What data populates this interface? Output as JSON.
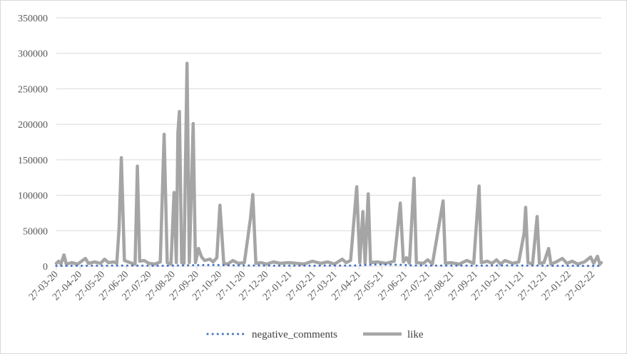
{
  "chart_data": {
    "type": "line",
    "title": "",
    "xlabel": "",
    "ylabel": "",
    "ylim": [
      0,
      350000
    ],
    "yticks": [
      0,
      50000,
      100000,
      150000,
      200000,
      250000,
      300000,
      350000
    ],
    "ytick_labels": [
      "0",
      "50000",
      "100000",
      "150000",
      "200000",
      "250000",
      "300000",
      "350000"
    ],
    "x_start": "2020-03-27",
    "x_end": "2022-03-10",
    "xtick_labels": [
      "27-03-20",
      "27-04-20",
      "27-05-20",
      "27-06-20",
      "27-07-20",
      "27-08-20",
      "27-09-20",
      "27-10-20",
      "27-11-20",
      "27-12-20",
      "27-01-21",
      "27-02-21",
      "27-03-21",
      "27-04-21",
      "27-05-21",
      "27-06-21",
      "27-07-21",
      "27-08-21",
      "27-09-21",
      "27-10-21",
      "27-11-21",
      "27-12-21",
      "27-01-22",
      "27-02-22"
    ],
    "xtick_dates": [
      "2020-03-27",
      "2020-04-27",
      "2020-05-27",
      "2020-06-27",
      "2020-07-27",
      "2020-08-27",
      "2020-09-27",
      "2020-10-27",
      "2020-11-27",
      "2020-12-27",
      "2021-01-27",
      "2021-02-27",
      "2021-03-27",
      "2021-04-27",
      "2021-05-27",
      "2021-06-27",
      "2021-07-27",
      "2021-08-27",
      "2021-09-27",
      "2021-10-27",
      "2021-11-27",
      "2021-12-27",
      "2022-01-27",
      "2022-02-27"
    ],
    "grid": true,
    "legend_position": "bottom",
    "series": [
      {
        "name": "negative_comments",
        "style": "dotted",
        "color": "#4472c4",
        "points": [
          [
            "2020-03-27",
            500
          ],
          [
            "2020-06-20",
            900
          ],
          [
            "2020-08-15",
            600
          ],
          [
            "2020-09-20",
            1400
          ],
          [
            "2020-10-20",
            1800
          ],
          [
            "2020-11-15",
            1200
          ],
          [
            "2021-01-20",
            700
          ],
          [
            "2021-04-20",
            900
          ],
          [
            "2021-05-20",
            2500
          ],
          [
            "2021-06-25",
            2000
          ],
          [
            "2021-07-05",
            1000
          ],
          [
            "2021-09-20",
            800
          ],
          [
            "2021-11-10",
            1100
          ],
          [
            "2022-01-15",
            600
          ],
          [
            "2022-03-10",
            500
          ]
        ]
      },
      {
        "name": "like",
        "style": "solid",
        "color": "#a5a5a5",
        "points": [
          [
            "2020-03-27",
            4000
          ],
          [
            "2020-03-30",
            7000
          ],
          [
            "2020-04-02",
            3000
          ],
          [
            "2020-04-06",
            16000
          ],
          [
            "2020-04-09",
            3000
          ],
          [
            "2020-04-16",
            5000
          ],
          [
            "2020-04-24",
            3000
          ],
          [
            "2020-05-04",
            11000
          ],
          [
            "2020-05-08",
            4000
          ],
          [
            "2020-05-16",
            6000
          ],
          [
            "2020-05-24",
            4000
          ],
          [
            "2020-05-29",
            10000
          ],
          [
            "2020-06-03",
            5000
          ],
          [
            "2020-06-10",
            6000
          ],
          [
            "2020-06-14",
            4000
          ],
          [
            "2020-06-17",
            53000
          ],
          [
            "2020-06-20",
            153000
          ],
          [
            "2020-06-24",
            8000
          ],
          [
            "2020-06-29",
            6000
          ],
          [
            "2020-07-04",
            4000
          ],
          [
            "2020-07-08",
            3000
          ],
          [
            "2020-07-11",
            141000
          ],
          [
            "2020-07-14",
            7000
          ],
          [
            "2020-07-20",
            8000
          ],
          [
            "2020-07-26",
            4000
          ],
          [
            "2020-08-03",
            3000
          ],
          [
            "2020-08-10",
            6000
          ],
          [
            "2020-08-15",
            186000
          ],
          [
            "2020-08-19",
            5000
          ],
          [
            "2020-08-24",
            3000
          ],
          [
            "2020-08-28",
            104000
          ],
          [
            "2020-08-31",
            5000
          ],
          [
            "2020-09-02",
            188000
          ],
          [
            "2020-09-04",
            218000
          ],
          [
            "2020-09-07",
            5000
          ],
          [
            "2020-09-10",
            4000
          ],
          [
            "2020-09-14",
            286000
          ],
          [
            "2020-09-17",
            5000
          ],
          [
            "2020-09-19",
            82000
          ],
          [
            "2020-09-22",
            201000
          ],
          [
            "2020-09-25",
            5000
          ],
          [
            "2020-09-29",
            25000
          ],
          [
            "2020-10-03",
            13000
          ],
          [
            "2020-10-07",
            8000
          ],
          [
            "2020-10-14",
            10000
          ],
          [
            "2020-10-18",
            6000
          ],
          [
            "2020-10-23",
            12000
          ],
          [
            "2020-10-27",
            86000
          ],
          [
            "2020-11-01",
            4000
          ],
          [
            "2020-11-06",
            3000
          ],
          [
            "2020-11-13",
            8000
          ],
          [
            "2020-11-20",
            4000
          ],
          [
            "2020-11-28",
            5000
          ],
          [
            "2020-12-06",
            68000
          ],
          [
            "2020-12-09",
            101000
          ],
          [
            "2020-12-13",
            4000
          ],
          [
            "2020-12-20",
            5000
          ],
          [
            "2020-12-27",
            3000
          ],
          [
            "2021-01-05",
            6000
          ],
          [
            "2021-01-14",
            4000
          ],
          [
            "2021-01-25",
            5000
          ],
          [
            "2021-02-05",
            4000
          ],
          [
            "2021-02-14",
            3000
          ],
          [
            "2021-02-25",
            7000
          ],
          [
            "2021-03-08",
            4000
          ],
          [
            "2021-03-17",
            6000
          ],
          [
            "2021-03-26",
            3000
          ],
          [
            "2021-04-05",
            10000
          ],
          [
            "2021-04-10",
            5000
          ],
          [
            "2021-04-16",
            8000
          ],
          [
            "2021-04-24",
            112000
          ],
          [
            "2021-04-28",
            5000
          ],
          [
            "2021-05-02",
            77000
          ],
          [
            "2021-05-05",
            4000
          ],
          [
            "2021-05-09",
            102000
          ],
          [
            "2021-05-12",
            5000
          ],
          [
            "2021-05-21",
            6000
          ],
          [
            "2021-06-01",
            4000
          ],
          [
            "2021-06-12",
            7000
          ],
          [
            "2021-06-20",
            89000
          ],
          [
            "2021-06-24",
            6000
          ],
          [
            "2021-06-28",
            12000
          ],
          [
            "2021-07-02",
            4000
          ],
          [
            "2021-07-08",
            124000
          ],
          [
            "2021-07-11",
            5000
          ],
          [
            "2021-07-20",
            4000
          ],
          [
            "2021-07-26",
            9000
          ],
          [
            "2021-08-01",
            3000
          ],
          [
            "2021-08-15",
            92000
          ],
          [
            "2021-08-18",
            4000
          ],
          [
            "2021-08-25",
            5000
          ],
          [
            "2021-09-05",
            3000
          ],
          [
            "2021-09-15",
            8000
          ],
          [
            "2021-09-24",
            4000
          ],
          [
            "2021-10-01",
            113000
          ],
          [
            "2021-10-04",
            5000
          ],
          [
            "2021-10-12",
            7000
          ],
          [
            "2021-10-18",
            4000
          ],
          [
            "2021-10-24",
            9000
          ],
          [
            "2021-10-29",
            3000
          ],
          [
            "2021-11-04",
            8000
          ],
          [
            "2021-11-14",
            4000
          ],
          [
            "2021-11-22",
            6000
          ],
          [
            "2021-11-29",
            47000
          ],
          [
            "2021-12-01",
            83000
          ],
          [
            "2021-12-04",
            5000
          ],
          [
            "2021-12-10",
            3000
          ],
          [
            "2021-12-16",
            70000
          ],
          [
            "2021-12-19",
            4000
          ],
          [
            "2021-12-25",
            5000
          ],
          [
            "2021-12-31",
            25000
          ],
          [
            "2022-01-03",
            3000
          ],
          [
            "2022-01-10",
            6000
          ],
          [
            "2022-01-18",
            11000
          ],
          [
            "2022-01-24",
            4000
          ],
          [
            "2022-01-31",
            7000
          ],
          [
            "2022-02-07",
            3000
          ],
          [
            "2022-02-16",
            6000
          ],
          [
            "2022-02-24",
            13000
          ],
          [
            "2022-02-28",
            4000
          ],
          [
            "2022-03-05",
            14000
          ],
          [
            "2022-03-08",
            3000
          ],
          [
            "2022-03-10",
            5000
          ]
        ]
      }
    ]
  }
}
